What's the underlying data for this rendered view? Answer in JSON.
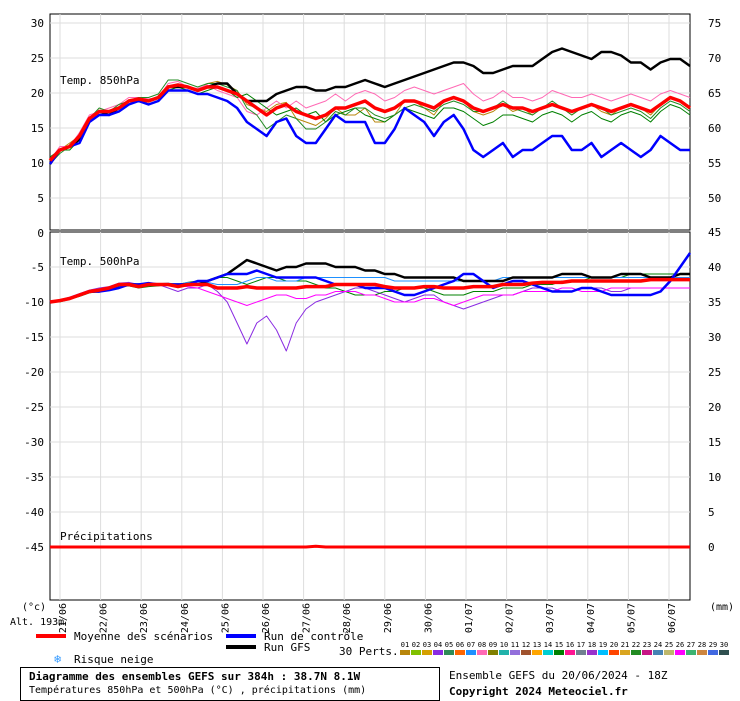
{
  "chart_data": [
    {
      "type": "line",
      "panel_label": "Temp. 850hPa",
      "y_left_ticks": [
        30,
        25,
        20,
        15,
        10,
        5,
        0
      ],
      "y_right_ticks": [
        75,
        70,
        65,
        60,
        55,
        50
      ],
      "ylim": [
        0,
        30
      ],
      "mean_series_name": "Moyenne des scénarios",
      "control_series_name": "Run de contrôle",
      "gfs_series_name": "Run GFS",
      "mean": [
        9.5,
        11,
        11.5,
        13,
        15.5,
        16.5,
        16.5,
        17,
        18,
        18.3,
        18,
        18.5,
        20,
        20.3,
        20,
        19.5,
        20,
        20,
        19.5,
        19,
        18,
        17,
        16,
        17,
        17.5,
        16.5,
        16,
        15.5,
        16,
        17,
        17,
        17.5,
        18,
        17,
        16.5,
        17,
        18,
        18,
        17.5,
        17,
        18,
        18.5,
        18,
        17,
        16.5,
        17,
        17.5,
        17,
        17,
        16.5,
        17,
        17.5,
        17,
        16.5,
        17,
        17.5,
        17,
        16.5,
        17,
        17.5,
        17,
        16.5,
        17.5,
        18.5,
        18,
        17
      ],
      "control": [
        9,
        11,
        11.5,
        12,
        15,
        16,
        16,
        16.5,
        17.5,
        18,
        17.5,
        18,
        19.5,
        19.5,
        19.5,
        19,
        19,
        18.5,
        18,
        17,
        15,
        14,
        13,
        15,
        15.5,
        13,
        12,
        12,
        14,
        16,
        15,
        15,
        15,
        12,
        12,
        14,
        17,
        16,
        15,
        13,
        15,
        16,
        14,
        11,
        10,
        11,
        12,
        10,
        11,
        11,
        12,
        13,
        13,
        11,
        11,
        12,
        10,
        11,
        12,
        11,
        10,
        11,
        13,
        12,
        11,
        11
      ],
      "gfs": [
        9,
        11,
        11.5,
        12.5,
        15.5,
        16.5,
        16,
        17,
        18,
        18,
        18,
        18.5,
        20,
        20,
        20,
        19.5,
        20,
        20.5,
        20.5,
        19,
        18,
        18,
        18,
        19,
        19.5,
        20,
        20,
        19.5,
        19.5,
        20,
        20,
        20.5,
        21,
        20.5,
        20,
        20.5,
        21,
        21.5,
        22,
        22.5,
        23,
        23.5,
        23.5,
        23,
        22,
        22,
        22.5,
        23,
        23,
        23,
        24,
        25,
        25.5,
        25,
        24.5,
        24,
        25,
        25,
        24.5,
        23.5,
        23.5,
        22.5,
        23.5,
        24,
        24,
        23
      ],
      "members": [
        [
          9,
          11,
          12,
          13,
          15.3,
          16.5,
          16.5,
          17,
          18,
          18.5,
          18,
          18.5,
          20.2,
          20.3,
          20,
          19.5,
          20.5,
          20.8,
          20.3,
          19.5,
          17.5,
          17,
          16.5,
          17.5,
          17.8,
          15.5,
          15,
          14.5,
          15.5,
          17,
          16,
          16,
          17,
          15,
          15,
          16,
          18,
          18,
          17,
          16,
          18,
          18.5,
          18,
          16.5,
          16,
          16.5,
          17.5,
          16.5,
          17,
          16,
          17,
          17.5,
          17,
          16,
          17,
          17.5,
          16.5,
          16,
          17,
          17.5,
          17,
          16,
          17.5,
          18.5,
          18,
          17
        ],
        [
          9.5,
          11.5,
          11.5,
          13.5,
          16,
          16.5,
          17,
          17.5,
          18.5,
          18.5,
          18.3,
          18.5,
          20.5,
          20.8,
          20,
          19.8,
          20.3,
          19.5,
          19,
          18.5,
          16.5,
          16,
          17,
          18,
          17,
          18,
          17,
          17.5,
          18,
          19,
          18,
          19,
          19.5,
          19,
          18,
          18.5,
          19.5,
          20,
          19.5,
          19,
          19.5,
          20,
          20.5,
          19,
          18,
          18.5,
          19.5,
          18.5,
          18.5,
          18,
          18.5,
          19.5,
          19,
          18.5,
          18.5,
          19,
          18.5,
          18,
          18.5,
          19,
          18.5,
          18,
          19,
          19.5,
          19,
          18.5
        ],
        [
          10,
          11,
          11,
          12.5,
          15,
          16,
          16,
          17,
          17.5,
          18,
          17.5,
          18,
          19.5,
          20,
          19.5,
          19,
          19.5,
          20,
          19.5,
          18.5,
          19,
          18,
          17,
          16,
          16.5,
          17,
          16,
          16.5,
          15,
          16,
          16.5,
          17,
          16,
          15.5,
          15,
          16,
          17,
          16.5,
          16,
          15.5,
          17,
          17,
          16.5,
          15.5,
          14.5,
          15,
          16,
          16,
          15.5,
          15,
          16,
          16.5,
          16,
          15,
          16,
          16.5,
          15.5,
          15,
          16,
          16.5,
          16,
          15,
          16.5,
          17.5,
          17,
          16
        ],
        [
          9,
          10.5,
          11.5,
          12,
          15.5,
          17,
          16.5,
          17.5,
          18,
          18.5,
          18.5,
          19,
          21,
          21,
          20.5,
          20,
          20.5,
          20.5,
          20,
          19.5,
          17,
          16,
          14,
          15,
          16,
          15.5,
          14,
          14,
          15,
          16.5,
          16,
          17,
          17,
          16,
          15.5,
          16,
          17,
          17.5,
          17,
          16.5,
          17.5,
          18,
          17.5,
          16.5,
          16.5,
          17,
          18,
          17,
          16.5,
          16,
          17,
          18,
          17,
          16,
          17,
          17.5,
          17,
          16,
          16.5,
          17,
          16.5,
          15.5,
          17,
          18,
          17.5,
          16.5
        ]
      ]
    },
    {
      "type": "line",
      "panel_label": "Temp. 500hPa",
      "y_left_ticks": [
        -5,
        -10,
        -15,
        -20,
        -25,
        -30,
        -35,
        -40,
        -45
      ],
      "y_right_ticks": [
        45,
        40,
        35,
        30,
        25,
        20,
        15,
        10,
        5,
        0
      ],
      "ylim": [
        -47,
        -4
      ],
      "mean": [
        -10,
        -9.8,
        -9.5,
        -9,
        -8.5,
        -8.3,
        -8,
        -7.5,
        -7.5,
        -7.8,
        -7.5,
        -7.5,
        -7.5,
        -7.8,
        -7.5,
        -7.5,
        -7.5,
        -8,
        -8,
        -8,
        -7.8,
        -8,
        -8,
        -8,
        -8,
        -8,
        -7.8,
        -7.8,
        -7.8,
        -7.5,
        -7.5,
        -7.5,
        -7.5,
        -7.5,
        -7.8,
        -8,
        -8,
        -8,
        -7.8,
        -7.8,
        -8,
        -8,
        -8,
        -7.8,
        -7.8,
        -7.8,
        -7.5,
        -7.5,
        -7.5,
        -7.3,
        -7.2,
        -7.2,
        -7.2,
        -7,
        -7,
        -7,
        -7,
        -7,
        -7,
        -7,
        -7,
        -6.8,
        -6.8,
        -6.8,
        -6.8,
        -6.8
      ],
      "control": [
        -10,
        -9.8,
        -9.5,
        -9,
        -8.5,
        -8.5,
        -8.3,
        -8,
        -7.5,
        -7.5,
        -7.3,
        -7.5,
        -7.5,
        -7.5,
        -7.5,
        -7,
        -7,
        -6.5,
        -6,
        -6,
        -6,
        -5.5,
        -6,
        -6.5,
        -6.5,
        -6.5,
        -6.5,
        -6.5,
        -7,
        -7.5,
        -7.5,
        -7.5,
        -8,
        -8,
        -8,
        -8.5,
        -9,
        -9,
        -8.5,
        -8,
        -7.5,
        -7,
        -6,
        -6,
        -7,
        -8,
        -7.5,
        -7,
        -7,
        -7.5,
        -8,
        -8.5,
        -8.5,
        -8.5,
        -8,
        -8,
        -8.5,
        -9,
        -9,
        -9,
        -9,
        -9,
        -8.5,
        -7,
        -5,
        -3
      ],
      "gfs": [
        -10,
        -9.8,
        -9.5,
        -9,
        -8.5,
        -8.5,
        -8,
        -7.5,
        -7.5,
        -7.5,
        -7.5,
        -7.5,
        -7.5,
        -7.5,
        -7.5,
        -7.5,
        -7,
        -6.5,
        -6,
        -5,
        -4,
        -4.5,
        -5,
        -5.5,
        -5,
        -5,
        -4.5,
        -4.5,
        -4.5,
        -5,
        -5,
        -5,
        -5.5,
        -5.5,
        -6,
        -6,
        -6.5,
        -6.5,
        -6.5,
        -6.5,
        -6.5,
        -6.5,
        -7,
        -7,
        -7,
        -7,
        -7,
        -6.5,
        -6.5,
        -6.5,
        -6.5,
        -6.5,
        -6,
        -6,
        -6,
        -6.5,
        -6.5,
        -6.5,
        -6,
        -6,
        -6,
        -6.5,
        -6.5,
        -6.5,
        -6,
        -6
      ],
      "members": [
        [
          -10,
          -9.7,
          -9.3,
          -8.8,
          -8.3,
          -8,
          -7.8,
          -7.3,
          -7.2,
          -7.5,
          -7.3,
          -7.5,
          -8,
          -8.5,
          -8,
          -8,
          -7.5,
          -8.5,
          -10,
          -13,
          -16,
          -13,
          -12,
          -14,
          -17,
          -13,
          -11,
          -10,
          -9.5,
          -9,
          -8.5,
          -8,
          -8,
          -8.5,
          -9,
          -9.5,
          -10,
          -9.5,
          -9,
          -9,
          -10,
          -10.5,
          -11,
          -10.5,
          -10,
          -9.5,
          -9,
          -9,
          -8.5,
          -8,
          -8,
          -8,
          -8.5,
          -8.5,
          -8,
          -8,
          -8,
          -8.5,
          -8.5,
          -8,
          -8,
          -8,
          -8,
          -8,
          -8,
          -8
        ],
        [
          -10,
          -10,
          -9.6,
          -9.2,
          -8.7,
          -8.5,
          -8.2,
          -7.8,
          -7.7,
          -8,
          -7.8,
          -7.7,
          -7.5,
          -7.5,
          -7.2,
          -7,
          -7,
          -6.5,
          -6.5,
          -7,
          -7.5,
          -7,
          -6.5,
          -6.5,
          -7,
          -7,
          -7,
          -7.5,
          -8,
          -8,
          -8.5,
          -9,
          -9,
          -9,
          -8.5,
          -8.5,
          -8,
          -8,
          -8,
          -8.5,
          -9,
          -9,
          -9,
          -8.5,
          -8.5,
          -8.5,
          -8,
          -8,
          -8,
          -7.5,
          -7.5,
          -7.5,
          -7,
          -7,
          -7,
          -6.5,
          -6.5,
          -6.5,
          -6.5,
          -6,
          -6,
          -6,
          -6,
          -6,
          -6,
          -6
        ],
        [
          -10,
          -9.8,
          -9.4,
          -9,
          -8.5,
          -8.2,
          -8,
          -7.6,
          -7.4,
          -7.6,
          -7.6,
          -7.5,
          -7.5,
          -7.7,
          -7.8,
          -8,
          -8.5,
          -9,
          -9.5,
          -10,
          -10.5,
          -10,
          -9.5,
          -9,
          -9,
          -9.5,
          -9.5,
          -9,
          -9,
          -8.5,
          -8.5,
          -8.5,
          -9,
          -9,
          -9.5,
          -10,
          -10,
          -10,
          -9.5,
          -9.5,
          -10,
          -10.5,
          -10,
          -9.5,
          -9,
          -9,
          -9,
          -9,
          -8.5,
          -8.5,
          -8.5,
          -8.5,
          -8,
          -8,
          -8.5,
          -8.5,
          -8.5,
          -8,
          -8,
          -8,
          -8,
          -8,
          -8,
          -8,
          -8,
          -8
        ],
        [
          -10,
          -9.9,
          -9.5,
          -9,
          -8.6,
          -8.4,
          -8.1,
          -7.7,
          -7.6,
          -7.7,
          -7.4,
          -7.4,
          -7.3,
          -7.5,
          -7.2,
          -7.3,
          -7.2,
          -7.5,
          -7.5,
          -7.5,
          -7,
          -6.5,
          -6.5,
          -7,
          -7,
          -7,
          -6.5,
          -6.5,
          -6.5,
          -6.5,
          -6.5,
          -6.5,
          -6.5,
          -6.5,
          -6.5,
          -7,
          -7,
          -7,
          -7,
          -7,
          -7,
          -7,
          -7,
          -7,
          -7,
          -7,
          -6.5,
          -6.5,
          -6.5,
          -6.5,
          -6.5,
          -6.5,
          -6.5,
          -6.5,
          -6.5,
          -6.5,
          -6.5,
          -6.5,
          -6.5,
          -6.5,
          -6.5,
          -6.5,
          -6.5,
          -6.5,
          -6.5,
          -6.5
        ]
      ]
    },
    {
      "type": "line",
      "panel_label": "Précipitations",
      "values": [
        0,
        0,
        0,
        0,
        0,
        0,
        0,
        0,
        0,
        0,
        0,
        0,
        0,
        0,
        0,
        0,
        0,
        0,
        0,
        0,
        0,
        0,
        0,
        0,
        0,
        0,
        0,
        0.1,
        0,
        0,
        0,
        0,
        0,
        0,
        0,
        0,
        0,
        0,
        0,
        0,
        0,
        0,
        0,
        0,
        0,
        0,
        0,
        0,
        0,
        0,
        0,
        0,
        0,
        0,
        0,
        0,
        0,
        0,
        0,
        0,
        0,
        0,
        0,
        0,
        0,
        0
      ]
    }
  ],
  "x_axis": {
    "tick_labels": [
      "21/06",
      "22/06",
      "23/06",
      "24/06",
      "25/06",
      "26/06",
      "27/06",
      "28/06",
      "29/06",
      "30/06",
      "01/07",
      "02/07",
      "03/07",
      "04/07",
      "05/07",
      "06/07"
    ],
    "left_unit": "(°c)",
    "right_unit": "(mm)",
    "altitude": "Alt. 193m"
  },
  "legend": {
    "mean_label": "Moyenne des scénarios",
    "control_label": "Run de contrôle",
    "gfs_label": "Run GFS",
    "snow_label": "Risque neige",
    "perturbations_label": "30 Perts.",
    "colors": {
      "mean": "#ff0000",
      "control": "#0000ff",
      "gfs": "#000000",
      "snow": "#3399ff"
    },
    "perturbation_numbers": [
      "01",
      "02",
      "03",
      "04",
      "05",
      "06",
      "07",
      "08",
      "09",
      "10",
      "11",
      "12",
      "13",
      "14",
      "15",
      "16",
      "17",
      "18",
      "19",
      "20",
      "21",
      "22",
      "23",
      "24",
      "25",
      "26",
      "27",
      "28",
      "29",
      "30"
    ],
    "perturbation_colors": [
      "#b8860b",
      "#80c000",
      "#d4a000",
      "#8a2be2",
      "#2e8b57",
      "#ff6600",
      "#1e90ff",
      "#ff69b4",
      "#808000",
      "#20b2aa",
      "#9370db",
      "#a0522d",
      "#ffa500",
      "#00ced1",
      "#008000",
      "#ff1493",
      "#708090",
      "#9932cc",
      "#00bfff",
      "#ff4500",
      "#daa520",
      "#228b22",
      "#c71585",
      "#4682b4",
      "#bdb76b",
      "#ff00ff",
      "#3cb371",
      "#cd853f",
      "#4169e1",
      "#2f4f4f"
    ]
  },
  "footer": {
    "title": "Diagramme des ensembles GEFS sur 384h : 38.7N 8.1W",
    "subtitle": "Températures 850hPa et 500hPa (°C) , précipitations (mm)",
    "run_info": "Ensemble GEFS du 20/06/2024 - 18Z",
    "copyright": "Copyright 2024 Meteociel.fr"
  }
}
